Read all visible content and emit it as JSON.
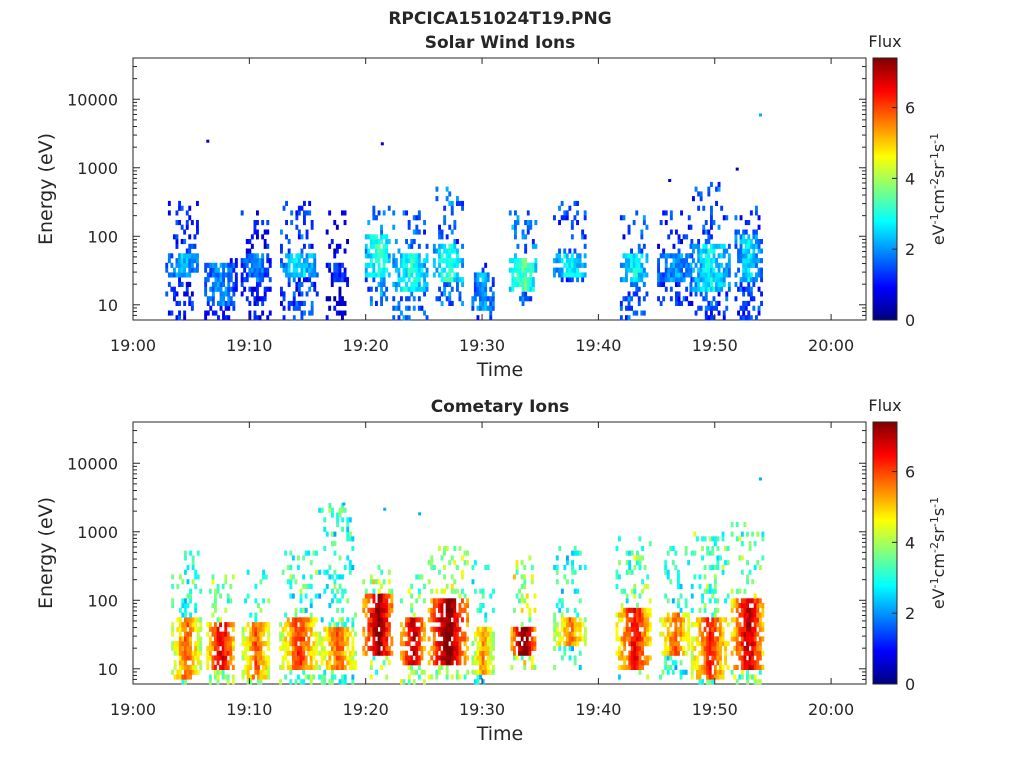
{
  "figure": {
    "title": "RPCICA151024T19.PNG"
  },
  "colorbar": {
    "label": "Flux",
    "unit_label": "eV⁻¹cm⁻²sr⁻¹s⁻¹",
    "unit_parts": [
      "eV",
      "-1",
      "cm",
      "-2",
      "sr",
      "-1",
      "s",
      "-1"
    ],
    "ticks": [
      "0",
      "2",
      "4",
      "6"
    ],
    "range": [
      0,
      7.4
    ],
    "colormap": "jet"
  },
  "chart_data": [
    {
      "type": "heatmap",
      "title": "Solar Wind Ions",
      "xlabel": "Time",
      "ylabel": "Energy (eV)",
      "x_ticks": [
        "19:00",
        "19:10",
        "19:20",
        "19:30",
        "19:40",
        "19:50",
        "20:00"
      ],
      "y_ticks": [
        "10",
        "100",
        "1000",
        "10000"
      ],
      "y_scale": "log",
      "xlim": [
        "19:00",
        "20:03"
      ],
      "ylim": [
        6,
        40000
      ],
      "cbar": {
        "label": "Flux",
        "range": [
          0,
          7.4
        ]
      },
      "bursts": [
        {
          "t": "19:04.2",
          "e_min": 6,
          "e_max": 320,
          "core_min": 25,
          "core_max": 60,
          "flux": 2.1
        },
        {
          "t": "19:07.5",
          "e_min": 6,
          "e_max": 50,
          "core_min": 10,
          "core_max": 40,
          "flux": 1.8
        },
        {
          "t": "19:10.5",
          "e_min": 6,
          "e_max": 250,
          "core_min": 20,
          "core_max": 60,
          "flux": 1.7
        },
        {
          "t": "19:14.2",
          "e_min": 6,
          "e_max": 320,
          "core_min": 25,
          "core_max": 60,
          "flux": 2.4
        },
        {
          "t": "19:17.5",
          "e_min": 6,
          "e_max": 250,
          "core_min": 20,
          "core_max": 40,
          "flux": 1.2
        },
        {
          "t": "19:21.0",
          "e_min": 10,
          "e_max": 300,
          "core_min": 25,
          "core_max": 100,
          "flux": 2.9
        },
        {
          "t": "19:23.8",
          "e_min": 6,
          "e_max": 250,
          "core_min": 15,
          "core_max": 60,
          "flux": 2.7
        },
        {
          "t": "19:27.0",
          "e_min": 10,
          "e_max": 500,
          "core_min": 20,
          "core_max": 80,
          "flux": 2.9
        },
        {
          "t": "19:30.0",
          "e_min": 6,
          "e_max": 40,
          "core_min": 8,
          "core_max": 30,
          "flux": 2.0
        },
        {
          "t": "19:33.5",
          "e_min": 10,
          "e_max": 250,
          "core_min": 15,
          "core_max": 50,
          "flux": 3.2
        },
        {
          "t": "19:37.5",
          "e_min": 20,
          "e_max": 400,
          "core_min": 25,
          "core_max": 60,
          "flux": 2.6
        },
        {
          "t": "19:43.0",
          "e_min": 6,
          "e_max": 300,
          "core_min": 20,
          "core_max": 60,
          "flux": 2.6
        },
        {
          "t": "19:46.5",
          "e_min": 10,
          "e_max": 250,
          "core_min": 20,
          "core_max": 60,
          "flux": 2.0
        },
        {
          "t": "19:49.5",
          "e_min": 6,
          "e_max": 600,
          "core_min": 15,
          "core_max": 80,
          "flux": 2.5
        },
        {
          "t": "19:52.8",
          "e_min": 6,
          "e_max": 280,
          "core_min": 20,
          "core_max": 100,
          "flux": 2.3
        }
      ],
      "isolated_points": [
        {
          "t": "19:06.3",
          "e": 2400,
          "flux": 0.6
        },
        {
          "t": "19:21.3",
          "e": 2200,
          "flux": 0.6
        },
        {
          "t": "19:53.8",
          "e": 5800,
          "flux": 2.2
        },
        {
          "t": "19:46.0",
          "e": 640,
          "flux": 0.6
        },
        {
          "t": "19:51.8",
          "e": 940,
          "flux": 0.5
        }
      ]
    },
    {
      "type": "heatmap",
      "title": "Cometary Ions",
      "xlabel": "Time",
      "ylabel": "Energy (eV)",
      "x_ticks": [
        "19:00",
        "19:10",
        "19:20",
        "19:30",
        "19:40",
        "19:50",
        "20:00"
      ],
      "y_ticks": [
        "10",
        "100",
        "1000",
        "10000"
      ],
      "y_scale": "log",
      "xlim": [
        "19:00",
        "20:03"
      ],
      "ylim": [
        6,
        40000
      ],
      "cbar": {
        "label": "Flux",
        "range": [
          0,
          7.4
        ]
      },
      "bursts": [
        {
          "t": "19:04.5",
          "e_min": 6,
          "e_max": 500,
          "core_min": 7,
          "core_max": 60,
          "flux": 5.4
        },
        {
          "t": "19:07.5",
          "e_min": 6,
          "e_max": 300,
          "core_min": 10,
          "core_max": 50,
          "flux": 6.3
        },
        {
          "t": "19:10.5",
          "e_min": 6,
          "e_max": 400,
          "core_min": 7,
          "core_max": 50,
          "flux": 5.4
        },
        {
          "t": "19:14.2",
          "e_min": 6,
          "e_max": 600,
          "core_min": 10,
          "core_max": 60,
          "flux": 5.6
        },
        {
          "t": "19:17.5",
          "e_min": 6,
          "e_max": 2500,
          "core_min": 10,
          "core_max": 40,
          "flux": 5.4
        },
        {
          "t": "19:21.0",
          "e_min": 7,
          "e_max": 350,
          "core_min": 15,
          "core_max": 120,
          "flux": 6.8
        },
        {
          "t": "19:24.0",
          "e_min": 6,
          "e_max": 300,
          "core_min": 12,
          "core_max": 60,
          "flux": 6.6
        },
        {
          "t": "19:27.0",
          "e_min": 7,
          "e_max": 600,
          "core_min": 12,
          "core_max": 110,
          "flux": 6.9
        },
        {
          "t": "19:30.0",
          "e_min": 6,
          "e_max": 400,
          "core_min": 8,
          "core_max": 40,
          "flux": 5.0
        },
        {
          "t": "19:33.5",
          "e_min": 10,
          "e_max": 450,
          "core_min": 15,
          "core_max": 40,
          "flux": 7.1
        },
        {
          "t": "19:37.5",
          "e_min": 10,
          "e_max": 600,
          "core_min": 20,
          "core_max": 60,
          "flux": 5.2
        },
        {
          "t": "19:43.0",
          "e_min": 7,
          "e_max": 800,
          "core_min": 10,
          "core_max": 80,
          "flux": 6.0
        },
        {
          "t": "19:46.5",
          "e_min": 7,
          "e_max": 600,
          "core_min": 15,
          "core_max": 70,
          "flux": 5.4
        },
        {
          "t": "19:49.5",
          "e_min": 6,
          "e_max": 1000,
          "core_min": 7,
          "core_max": 60,
          "flux": 5.8
        },
        {
          "t": "19:52.8",
          "e_min": 6,
          "e_max": 1400,
          "core_min": 10,
          "core_max": 100,
          "flux": 6.4
        }
      ],
      "isolated_points": [
        {
          "t": "19:18.0",
          "e": 2500,
          "flux": 2.2
        },
        {
          "t": "19:21.5",
          "e": 2100,
          "flux": 2.2
        },
        {
          "t": "19:24.5",
          "e": 1800,
          "flux": 2.2
        },
        {
          "t": "19:53.8",
          "e": 5800,
          "flux": 2.2
        }
      ]
    }
  ]
}
